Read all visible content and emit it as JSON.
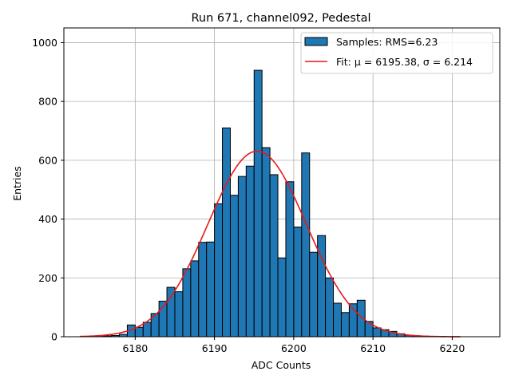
{
  "chart_data": {
    "type": "histogram",
    "title": "Run 671, channel092, Pedestal",
    "xlabel": "ADC Counts",
    "ylabel": "Entries",
    "xlim": [
      6171.0,
      6226.0
    ],
    "ylim": [
      0,
      1050
    ],
    "xticks": [
      6180,
      6190,
      6200,
      6210,
      6220
    ],
    "yticks": [
      0,
      200,
      400,
      600,
      800,
      1000
    ],
    "grid": true,
    "legend_position": "top-right",
    "colors": {
      "bars": "#1f77b4",
      "bar_edge": "#000000",
      "fit": "#e41a1c"
    },
    "bin_start": 6173.0,
    "bin_width": 1.0,
    "counts": [
      0,
      0,
      1,
      3,
      4,
      8,
      40,
      32,
      49,
      79,
      121,
      168,
      153,
      231,
      258,
      321,
      322,
      452,
      710,
      481,
      545,
      580,
      906,
      643,
      551,
      268,
      527,
      373,
      625,
      287,
      344,
      200,
      114,
      82,
      112,
      124,
      52,
      30,
      24,
      18,
      10,
      5,
      3,
      2,
      1,
      0,
      0,
      0,
      0,
      0,
      0,
      0
    ],
    "series": [
      {
        "name": "Samples: RMS=6.23",
        "kind": "histogram"
      },
      {
        "name": "Fit: μ = 6195.38, σ = 6.214",
        "kind": "gaussian",
        "mu": 6195.38,
        "sigma": 6.214,
        "amplitude": 631,
        "x_range": [
          6173.0,
          6221.0
        ]
      }
    ]
  }
}
